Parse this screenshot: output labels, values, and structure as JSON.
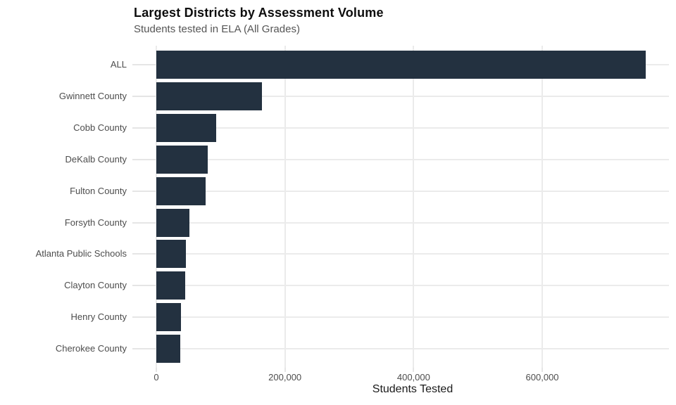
{
  "title": "Largest Districts by Assessment Volume",
  "subtitle": "Students tested in ELA (All Grades)",
  "chart_data": {
    "type": "bar",
    "orientation": "horizontal",
    "title": "Largest Districts by Assessment Volume",
    "subtitle": "Students tested in ELA (All Grades)",
    "xlabel": "Students Tested",
    "ylabel": "",
    "categories": [
      "ALL",
      "Gwinnett County",
      "Cobb County",
      "DeKalb County",
      "Fulton County",
      "Forsyth County",
      "Atlanta Public Schools",
      "Clayton County",
      "Henry County",
      "Cherokee County"
    ],
    "values": [
      761000,
      164000,
      93000,
      80000,
      77000,
      51000,
      46000,
      45000,
      38000,
      37000
    ],
    "xlim": [
      0,
      797000
    ],
    "xticks": [
      0,
      200000,
      400000,
      600000
    ],
    "xtick_labels": [
      "0",
      "200,000",
      "400,000",
      "600,000"
    ],
    "grid": "major vertical gridlines + horizontal gridline at each category center, no axis lines, no panel border",
    "legend": "none",
    "colors": {
      "bar": "#233140",
      "grid": "#ebebeb",
      "tick": "#e5e5e5",
      "axis_text": "#4d4d4d",
      "axis_title": "#1a1a1a",
      "title": "#0d0d0d",
      "subtitle": "#555555",
      "background": "#ffffff"
    }
  }
}
